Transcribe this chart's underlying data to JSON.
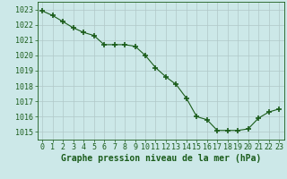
{
  "x": [
    0,
    1,
    2,
    3,
    4,
    5,
    6,
    7,
    8,
    9,
    10,
    11,
    12,
    13,
    14,
    15,
    16,
    17,
    18,
    19,
    20,
    21,
    22,
    23
  ],
  "y": [
    1022.9,
    1022.6,
    1022.2,
    1021.8,
    1021.5,
    1021.3,
    1020.7,
    1020.7,
    1020.7,
    1020.6,
    1020.0,
    1019.2,
    1018.6,
    1018.1,
    1017.2,
    1016.0,
    1015.8,
    1015.1,
    1015.1,
    1015.1,
    1015.2,
    1015.9,
    1016.3,
    1016.5
  ],
  "xlabel": "Graphe pression niveau de la mer (hPa)",
  "ylim": [
    1014.5,
    1023.5
  ],
  "xlim": [
    -0.5,
    23.5
  ],
  "yticks": [
    1015,
    1016,
    1017,
    1018,
    1019,
    1020,
    1021,
    1022,
    1023
  ],
  "xticks": [
    0,
    1,
    2,
    3,
    4,
    5,
    6,
    7,
    8,
    9,
    10,
    11,
    12,
    13,
    14,
    15,
    16,
    17,
    18,
    19,
    20,
    21,
    22,
    23
  ],
  "line_color": "#1a5c1a",
  "marker_color": "#1a5c1a",
  "bg_color": "#cce8e8",
  "grid_color": "#b0c8c8",
  "axes_color": "#1a5c1a",
  "tick_color": "#1a5c1a",
  "xlabel_color": "#1a5c1a",
  "xlabel_fontsize": 7.0,
  "tick_fontsize": 6.0,
  "xlabel_bold": true
}
